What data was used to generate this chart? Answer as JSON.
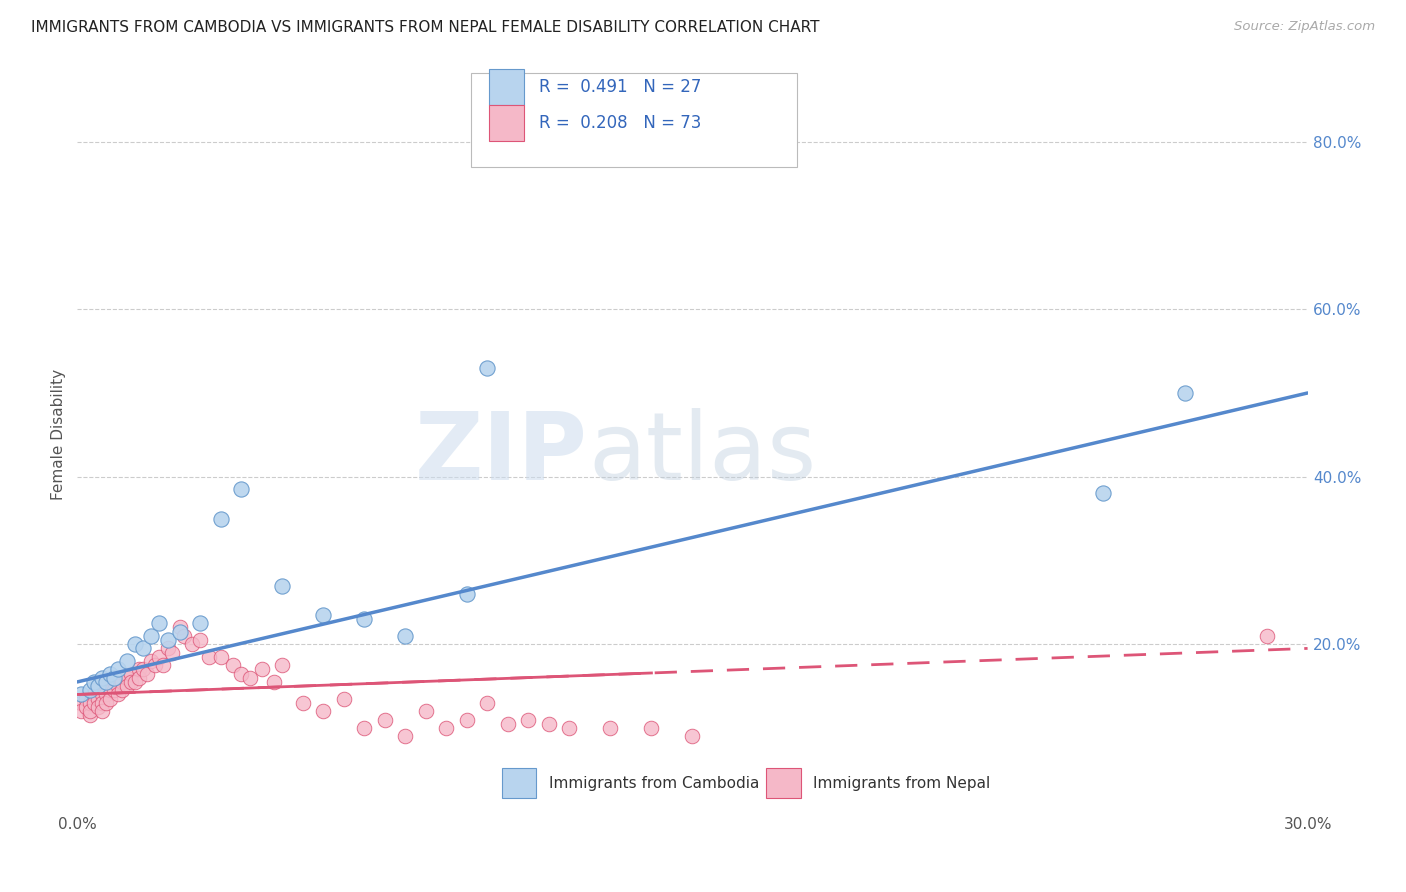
{
  "title": "IMMIGRANTS FROM CAMBODIA VS IMMIGRANTS FROM NEPAL FEMALE DISABILITY CORRELATION CHART",
  "source": "Source: ZipAtlas.com",
  "ylabel": "Female Disability",
  "x_min": 0.0,
  "x_max": 0.3,
  "y_min": 0.0,
  "y_max": 0.9,
  "right_yticks": [
    0.2,
    0.4,
    0.6,
    0.8
  ],
  "right_yticklabels": [
    "20.0%",
    "40.0%",
    "60.0%",
    "80.0%"
  ],
  "xtick_positions": [
    0.0,
    0.05,
    0.1,
    0.15,
    0.2,
    0.25,
    0.3
  ],
  "xticklabels": [
    "0.0%",
    "",
    "",
    "",
    "",
    "",
    "30.0%"
  ],
  "legend_label1": "Immigrants from Cambodia",
  "legend_label2": "Immigrants from Nepal",
  "color_cambodia_fill": "#b8d4ee",
  "color_cambodia_edge": "#6699cc",
  "color_nepal_fill": "#f5b8c8",
  "color_nepal_edge": "#dd5577",
  "color_line_cambodia": "#5588cc",
  "color_line_nepal": "#dd5577",
  "watermark_zip": "ZIP",
  "watermark_atlas": "atlas",
  "cambodia_x": [
    0.001,
    0.003,
    0.004,
    0.005,
    0.006,
    0.007,
    0.008,
    0.009,
    0.01,
    0.012,
    0.014,
    0.016,
    0.018,
    0.02,
    0.022,
    0.025,
    0.03,
    0.035,
    0.04,
    0.05,
    0.06,
    0.07,
    0.08,
    0.095,
    0.1,
    0.25,
    0.27
  ],
  "cambodia_y": [
    0.14,
    0.145,
    0.155,
    0.15,
    0.16,
    0.155,
    0.165,
    0.16,
    0.17,
    0.18,
    0.2,
    0.195,
    0.21,
    0.225,
    0.205,
    0.215,
    0.225,
    0.35,
    0.385,
    0.27,
    0.235,
    0.23,
    0.21,
    0.26,
    0.53,
    0.38,
    0.5
  ],
  "nepal_x": [
    0.001,
    0.001,
    0.002,
    0.002,
    0.003,
    0.003,
    0.003,
    0.004,
    0.004,
    0.005,
    0.005,
    0.005,
    0.006,
    0.006,
    0.006,
    0.007,
    0.007,
    0.007,
    0.008,
    0.008,
    0.008,
    0.009,
    0.009,
    0.01,
    0.01,
    0.01,
    0.011,
    0.011,
    0.012,
    0.012,
    0.013,
    0.013,
    0.014,
    0.015,
    0.015,
    0.016,
    0.017,
    0.018,
    0.019,
    0.02,
    0.021,
    0.022,
    0.023,
    0.025,
    0.026,
    0.028,
    0.03,
    0.032,
    0.035,
    0.038,
    0.04,
    0.042,
    0.045,
    0.048,
    0.05,
    0.055,
    0.06,
    0.065,
    0.07,
    0.075,
    0.08,
    0.085,
    0.09,
    0.095,
    0.1,
    0.105,
    0.11,
    0.115,
    0.12,
    0.13,
    0.14,
    0.15,
    0.29
  ],
  "nepal_y": [
    0.13,
    0.12,
    0.135,
    0.125,
    0.115,
    0.13,
    0.12,
    0.14,
    0.13,
    0.145,
    0.135,
    0.125,
    0.14,
    0.13,
    0.12,
    0.15,
    0.14,
    0.13,
    0.155,
    0.145,
    0.135,
    0.155,
    0.145,
    0.16,
    0.15,
    0.14,
    0.155,
    0.145,
    0.16,
    0.15,
    0.165,
    0.155,
    0.155,
    0.17,
    0.16,
    0.17,
    0.165,
    0.18,
    0.175,
    0.185,
    0.175,
    0.195,
    0.19,
    0.22,
    0.21,
    0.2,
    0.205,
    0.185,
    0.185,
    0.175,
    0.165,
    0.16,
    0.17,
    0.155,
    0.175,
    0.13,
    0.12,
    0.135,
    0.1,
    0.11,
    0.09,
    0.12,
    0.1,
    0.11,
    0.13,
    0.105,
    0.11,
    0.105,
    0.1,
    0.1,
    0.1,
    0.09,
    0.21
  ],
  "trend_cam_x0": 0.0,
  "trend_cam_y0": 0.155,
  "trend_cam_x1": 0.3,
  "trend_cam_y1": 0.5,
  "trend_nep_x0": 0.0,
  "trend_nep_y0": 0.14,
  "trend_nep_x1": 0.3,
  "trend_nep_y1": 0.195
}
